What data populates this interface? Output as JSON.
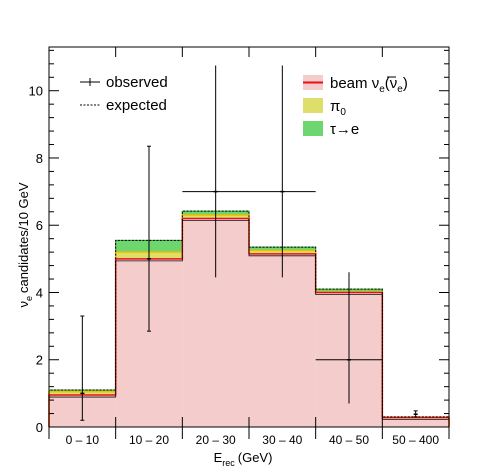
{
  "chart_data": {
    "type": "bar",
    "subtype": "stacked-step-histogram",
    "title": "",
    "xlabel": {
      "main": "E",
      "sub": "rec",
      "unit": "(GeV)"
    },
    "ylabel": {
      "nu": "ν",
      "sub": "e",
      "rest": "candidates/10 GeV"
    },
    "categories": [
      "0 – 10",
      "10 – 20",
      "20 – 30",
      "30 – 40",
      "40 – 50",
      "50 – 400"
    ],
    "ylim": [
      0,
      11.3
    ],
    "yticks": [
      0,
      2,
      4,
      6,
      8,
      10
    ],
    "grid": false,
    "legend_left_position": "top-left",
    "legend_right_position": "top-right",
    "colors": {
      "beam_fill": "#f4cccc",
      "beam_line": "#e8101a",
      "pi0_fill": "#dede6a",
      "pi0_line": "#f0c000",
      "tau_fill": "#6ed66e",
      "tau_line": "#2fa82f",
      "expected_line": "#000000",
      "observed_line": "#000000"
    },
    "series": [
      {
        "key": "beam",
        "name_main": "beam ν",
        "name_sub1": "e",
        "name_mid": "(ν",
        "name_sub2": "e",
        "name_end": ")",
        "values": [
          0.95,
          5.0,
          6.2,
          5.15,
          4.0,
          0.28
        ]
      },
      {
        "key": "pi0",
        "name_main": "π",
        "name_sub1": "0",
        "values": [
          0.1,
          0.2,
          0.1,
          0.1,
          0.02,
          0.01
        ]
      },
      {
        "key": "tau",
        "name_main": "τ→e",
        "values": [
          0.05,
          0.35,
          0.12,
          0.1,
          0.08,
          0.01
        ]
      }
    ],
    "expected": {
      "name": "expected",
      "values": [
        1.1,
        5.55,
        6.42,
        5.35,
        4.1,
        0.3
      ]
    },
    "observed": {
      "name": "observed",
      "points": [
        {
          "x": 5,
          "y": 1.0,
          "ylo": 0.2,
          "yhi": 3.3,
          "xerr": false
        },
        {
          "x": 15,
          "y": 5.0,
          "ylo": 2.85,
          "yhi": 8.35,
          "xerr": false
        },
        {
          "x": 25,
          "y": 7.0,
          "ylo": 4.45,
          "yhi": 10.75,
          "xerr": true
        },
        {
          "x": 35,
          "y": 7.0,
          "ylo": 4.45,
          "yhi": 10.75,
          "xerr": true
        },
        {
          "x": 45,
          "y": 2.0,
          "ylo": 0.7,
          "yhi": 4.6,
          "xerr": true
        },
        {
          "x": 55,
          "y": 0.38,
          "ylo": 0.3,
          "yhi": 0.48,
          "xerr": false
        }
      ]
    }
  }
}
